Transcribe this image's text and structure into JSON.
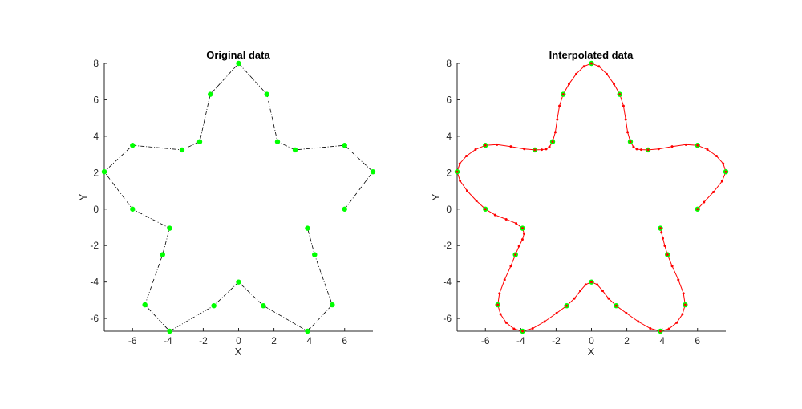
{
  "chart_data": [
    {
      "type": "line",
      "title": "Original data",
      "xlabel": "X",
      "ylabel": "Y",
      "xlim": [
        -7.6,
        7.6
      ],
      "ylim": [
        -6.7,
        8
      ],
      "xticks": [
        "-6",
        "-4",
        "-2",
        "0",
        "2",
        "4",
        "6"
      ],
      "yticks": [
        "8",
        "6",
        "4",
        "2",
        "0",
        "-2",
        "-4",
        "-6"
      ],
      "line_color": "#000000",
      "line_style": "dash-dot",
      "marker_color": "#00ff00",
      "series": [
        {
          "x": [
            6.0,
            7.6,
            6.0,
            3.2,
            2.2,
            1.6,
            0.0,
            -1.6,
            -2.2,
            -3.2,
            -6.0,
            -7.6,
            -6.0,
            -3.9,
            -4.3,
            -5.3,
            -3.9,
            -1.4,
            0.0,
            1.4,
            3.9,
            5.3,
            4.3,
            3.9
          ],
          "y": [
            0.0,
            2.05,
            3.5,
            3.25,
            3.7,
            6.3,
            8.0,
            6.3,
            3.7,
            3.25,
            3.5,
            2.05,
            0.0,
            -1.05,
            -2.5,
            -5.25,
            -6.7,
            -5.3,
            -4.0,
            -5.3,
            -6.7,
            -5.25,
            -2.5,
            -1.05
          ]
        }
      ]
    },
    {
      "type": "line",
      "title": "Interpolated data",
      "xlabel": "X",
      "ylabel": "Y",
      "xlim": [
        -7.6,
        7.6
      ],
      "ylim": [
        -6.7,
        8
      ],
      "xticks": [
        "-6",
        "-4",
        "-2",
        "0",
        "2",
        "4",
        "6"
      ],
      "yticks": [
        "8",
        "6",
        "4",
        "2",
        "0",
        "-2",
        "-4",
        "-6"
      ],
      "line_color": "#ff0000",
      "marker_color": "#00ff00",
      "interp_marker_color": "#ff0000",
      "series": [
        {
          "x": [
            6.0,
            7.6,
            6.0,
            3.2,
            2.2,
            1.6,
            0.0,
            -1.6,
            -2.2,
            -3.2,
            -6.0,
            -7.6,
            -6.0,
            -3.9,
            -4.3,
            -5.3,
            -3.9,
            -1.4,
            0.0,
            1.4,
            3.9,
            5.3,
            4.3,
            3.9
          ],
          "y": [
            0.0,
            2.05,
            3.5,
            3.25,
            3.7,
            6.3,
            8.0,
            6.3,
            3.7,
            3.25,
            3.5,
            2.05,
            0.0,
            -1.05,
            -2.5,
            -5.25,
            -6.7,
            -5.3,
            -4.0,
            -5.3,
            -6.7,
            -5.25,
            -2.5,
            -1.05
          ]
        }
      ]
    }
  ]
}
